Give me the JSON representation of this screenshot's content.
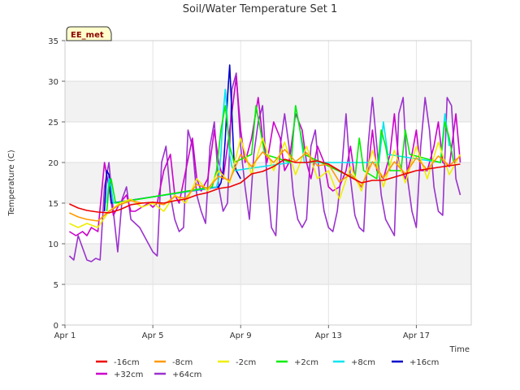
{
  "chart_data": {
    "type": "line",
    "title": "Soil/Water Temperature Set 1",
    "xlabel": "Time",
    "ylabel": "Temperature (C)",
    "station_label": "EE_met",
    "xlim": [
      0,
      18.5
    ],
    "ylim": [
      0,
      35
    ],
    "yticks": [
      0,
      5,
      10,
      15,
      20,
      25,
      30,
      35
    ],
    "xticks": [
      {
        "value": 0,
        "label": "Apr 1"
      },
      {
        "value": 4,
        "label": "Apr 5"
      },
      {
        "value": 8,
        "label": "Apr 9"
      },
      {
        "value": 12,
        "label": "Apr 13"
      },
      {
        "value": 16,
        "label": "Apr 17"
      }
    ],
    "grid": true,
    "legend_position": "bottom",
    "series": [
      {
        "name": "+64cm",
        "color": "#9a32cd",
        "x": [
          0.2,
          0.4,
          0.6,
          0.8,
          1.0,
          1.2,
          1.4,
          1.6,
          1.8,
          2.0,
          2.2,
          2.4,
          2.6,
          2.8,
          3.0,
          3.2,
          3.4,
          3.6,
          3.8,
          4.0,
          4.2,
          4.4,
          4.6,
          4.8,
          5.0,
          5.2,
          5.4,
          5.6,
          5.8,
          6.0,
          6.2,
          6.4,
          6.6,
          6.8,
          7.0,
          7.2,
          7.4,
          7.6,
          7.8,
          8.0,
          8.2,
          8.4,
          8.6,
          8.8,
          9.0,
          9.2,
          9.4,
          9.6,
          9.8,
          10.0,
          10.2,
          10.4,
          10.6,
          10.8,
          11.0,
          11.2,
          11.4,
          11.6,
          11.8,
          12.0,
          12.2,
          12.4,
          12.6,
          12.8,
          13.0,
          13.2,
          13.4,
          13.6,
          13.8,
          14.0,
          14.2,
          14.4,
          14.6,
          14.8,
          15.0,
          15.2,
          15.4,
          15.6,
          15.8,
          16.0,
          16.2,
          16.4,
          16.6,
          16.8,
          17.0,
          17.2,
          17.4,
          17.6,
          17.8,
          18.0
        ],
        "y": [
          8.5,
          8.0,
          11.0,
          9.5,
          8.0,
          7.8,
          8.2,
          8.0,
          17.0,
          20.0,
          14.0,
          9.0,
          15.5,
          17.0,
          13.0,
          12.5,
          12.0,
          11.0,
          10.0,
          9.0,
          8.5,
          20.0,
          22.0,
          16.0,
          13.0,
          11.5,
          12.0,
          24.0,
          22.0,
          16.0,
          14.0,
          12.5,
          22.0,
          25.0,
          17.0,
          14.0,
          15.0,
          29.0,
          31.0,
          22.0,
          17.0,
          13.0,
          21.0,
          25.0,
          27.0,
          18.0,
          12.0,
          11.0,
          22.0,
          26.0,
          22.0,
          16.0,
          13.0,
          12.0,
          13.0,
          22.0,
          24.0,
          18.0,
          14.0,
          12.0,
          11.5,
          14.0,
          19.0,
          26.0,
          18.0,
          13.5,
          12.0,
          11.5,
          22.0,
          28.0,
          22.0,
          16.0,
          13.0,
          12.0,
          11.0,
          26.0,
          28.0,
          18.0,
          14.0,
          12.0,
          22.0,
          28.0,
          24.0,
          17.0,
          14.0,
          13.5,
          28.0,
          27.0,
          18.0,
          16.0
        ]
      },
      {
        "name": "+32cm",
        "color": "#cc00cc",
        "x": [
          0.2,
          0.5,
          0.8,
          1.0,
          1.2,
          1.5,
          1.8,
          2.0,
          2.2,
          2.5,
          2.8,
          3.0,
          3.2,
          3.5,
          3.8,
          4.0,
          4.2,
          4.5,
          4.8,
          5.0,
          5.2,
          5.5,
          5.8,
          6.0,
          6.2,
          6.5,
          6.8,
          7.0,
          7.2,
          7.5,
          7.8,
          8.0,
          8.2,
          8.5,
          8.8,
          9.0,
          9.2,
          9.5,
          9.8,
          10.0,
          10.2,
          10.5,
          10.8,
          11.0,
          11.2,
          11.5,
          11.8,
          12.0,
          12.2,
          12.5,
          12.8,
          13.0,
          13.2,
          13.5,
          13.8,
          14.0,
          14.2,
          14.5,
          14.8,
          15.0,
          15.2,
          15.5,
          15.8,
          16.0,
          16.2,
          16.5,
          16.8,
          17.0,
          17.2,
          17.5,
          17.8,
          18.0
        ],
        "y": [
          11.5,
          11.0,
          11.5,
          11.0,
          12.0,
          11.5,
          20.0,
          17.0,
          13.5,
          15.0,
          16.0,
          14.0,
          14.0,
          14.5,
          15.0,
          14.5,
          15.0,
          19.0,
          21.0,
          16.0,
          15.0,
          19.0,
          23.0,
          18.0,
          16.5,
          18.0,
          24.0,
          20.0,
          18.0,
          24.0,
          30.5,
          24.0,
          20.0,
          23.0,
          28.0,
          23.0,
          20.0,
          25.0,
          23.0,
          19.0,
          20.0,
          26.0,
          24.0,
          20.0,
          18.0,
          22.0,
          20.0,
          17.0,
          16.5,
          17.0,
          19.0,
          22.0,
          18.0,
          17.0,
          19.0,
          24.0,
          19.0,
          18.0,
          21.0,
          26.0,
          20.0,
          18.0,
          21.0,
          24.0,
          19.0,
          19.0,
          22.0,
          25.0,
          20.0,
          19.5,
          26.0,
          20.0
        ]
      },
      {
        "name": "+16cm",
        "color": "#0000cc",
        "x": [
          1.8,
          1.9,
          2.0,
          2.1,
          7.0,
          7.1,
          7.2,
          7.3,
          7.4,
          7.5,
          7.6,
          7.7,
          7.8,
          7.9,
          8.0
        ],
        "y": [
          14.0,
          19.0,
          18.5,
          15.0,
          17.0,
          17.5,
          19.0,
          23.0,
          28.0,
          32.0,
          26.0,
          20.0,
          19.0,
          18.5,
          18.0
        ]
      },
      {
        "name": "+8cm",
        "color": "#00e5ee",
        "x": [
          1.9,
          2.0,
          2.1,
          2.2,
          6.9,
          7.0,
          7.1,
          7.2,
          7.3,
          7.4,
          7.5,
          7.6,
          7.7,
          10.3,
          10.5,
          10.7,
          10.9,
          14.3,
          14.5,
          14.7,
          17.1,
          17.3,
          17.5
        ],
        "y": [
          15.0,
          18.0,
          17.0,
          15.0,
          17.0,
          18.0,
          21.0,
          26.0,
          29.0,
          25.0,
          21.0,
          19.5,
          19.0,
          20.0,
          27.0,
          24.0,
          20.0,
          20.0,
          25.0,
          21.0,
          20.0,
          26.0,
          22.0
        ]
      },
      {
        "name": "+2cm",
        "color": "#00ee00",
        "x": [
          1.9,
          2.0,
          2.1,
          2.2,
          2.3,
          6.7,
          6.9,
          7.1,
          7.3,
          7.5,
          7.7,
          8.5,
          8.7,
          8.9,
          9.1,
          10.3,
          10.5,
          10.7,
          10.9,
          13.2,
          13.4,
          13.6,
          14.2,
          14.4,
          14.6,
          14.8,
          15.3,
          15.5,
          15.7,
          17.1,
          17.3,
          17.5,
          17.7
        ],
        "y": [
          14.0,
          17.0,
          18.0,
          16.5,
          15.0,
          17.0,
          19.0,
          24.0,
          27.0,
          22.0,
          20.0,
          21.0,
          27.0,
          24.0,
          21.0,
          20.0,
          27.0,
          24.0,
          21.0,
          18.0,
          23.0,
          19.0,
          18.0,
          24.0,
          22.0,
          19.0,
          19.0,
          24.0,
          21.0,
          20.0,
          25.0,
          23.0,
          20.0
        ]
      },
      {
        "name": "-2cm",
        "color": "#eeee00",
        "x": [
          0.2,
          0.6,
          1.0,
          1.5,
          2.0,
          2.5,
          3.0,
          3.5,
          4.0,
          4.5,
          5.0,
          5.5,
          6.0,
          6.5,
          7.0,
          7.5,
          8.0,
          8.5,
          9.0,
          9.5,
          10.0,
          10.5,
          11.0,
          11.5,
          12.0,
          12.5,
          13.0,
          13.5,
          14.0,
          14.5,
          15.0,
          15.5,
          16.0,
          16.5,
          17.0,
          17.5,
          18.0
        ],
        "y": [
          12.5,
          12.0,
          12.5,
          12.0,
          14.0,
          15.0,
          15.5,
          14.5,
          15.0,
          14.0,
          16.0,
          15.0,
          18.0,
          16.5,
          19.0,
          17.5,
          23.0,
          18.5,
          23.0,
          19.0,
          22.5,
          18.5,
          22.0,
          18.0,
          19.0,
          15.5,
          19.5,
          16.5,
          21.5,
          17.0,
          21.5,
          17.5,
          22.0,
          18.0,
          22.5,
          18.5,
          21.0
        ]
      },
      {
        "name": "-8cm",
        "color": "#ff9900",
        "x": [
          0.2,
          0.6,
          1.0,
          1.5,
          2.0,
          2.5,
          3.0,
          3.5,
          4.0,
          4.5,
          5.0,
          5.5,
          6.0,
          6.5,
          7.0,
          7.5,
          8.0,
          8.5,
          9.0,
          9.5,
          10.0,
          10.5,
          11.0,
          11.5,
          12.0,
          12.5,
          13.0,
          13.5,
          14.0,
          14.5,
          15.0,
          15.5,
          16.0,
          16.5,
          17.0,
          17.5,
          18.0
        ],
        "y": [
          13.8,
          13.3,
          13.0,
          12.8,
          14.0,
          14.8,
          15.3,
          15.0,
          15.1,
          14.8,
          15.8,
          15.6,
          17.3,
          16.8,
          18.3,
          17.8,
          21.0,
          19.5,
          21.3,
          20.0,
          21.6,
          20.1,
          21.2,
          19.6,
          19.8,
          17.6,
          18.6,
          17.1,
          20.1,
          18.1,
          20.1,
          18.6,
          20.6,
          19.1,
          20.8,
          19.6,
          20.8
        ]
      },
      {
        "name": "-16cm",
        "color": "#ee0000",
        "x": [
          0.2,
          0.6,
          1.0,
          1.5,
          2.0,
          2.5,
          3.0,
          3.5,
          4.0,
          4.5,
          5.0,
          5.5,
          6.0,
          6.5,
          7.0,
          7.5,
          8.0,
          8.5,
          9.0,
          9.5,
          10.0,
          10.5,
          11.0,
          11.5,
          12.0,
          12.5,
          13.0,
          13.5,
          14.0,
          14.5,
          15.0,
          15.5,
          16.0,
          16.5,
          17.0,
          17.5,
          18.0
        ],
        "y": [
          14.9,
          14.4,
          14.1,
          13.9,
          13.8,
          14.2,
          14.8,
          15.0,
          15.1,
          15.0,
          15.3,
          15.5,
          16.0,
          16.3,
          16.8,
          17.0,
          17.5,
          18.6,
          18.9,
          19.5,
          20.4,
          20.0,
          20.0,
          20.2,
          19.8,
          19.0,
          18.2,
          17.5,
          17.8,
          17.8,
          18.2,
          18.6,
          19.0,
          19.2,
          19.4,
          19.6,
          19.8
        ]
      }
    ],
    "legend": [
      {
        "name": "-16cm",
        "color": "#ee0000"
      },
      {
        "name": "-8cm",
        "color": "#ff9900"
      },
      {
        "name": "-2cm",
        "color": "#eeee00"
      },
      {
        "name": "+2cm",
        "color": "#00ee00"
      },
      {
        "name": "+8cm",
        "color": "#00e5ee"
      },
      {
        "name": "+16cm",
        "color": "#0000cc"
      },
      {
        "name": "+32cm",
        "color": "#cc00cc"
      },
      {
        "name": "+64cm",
        "color": "#9a32cd"
      }
    ]
  }
}
